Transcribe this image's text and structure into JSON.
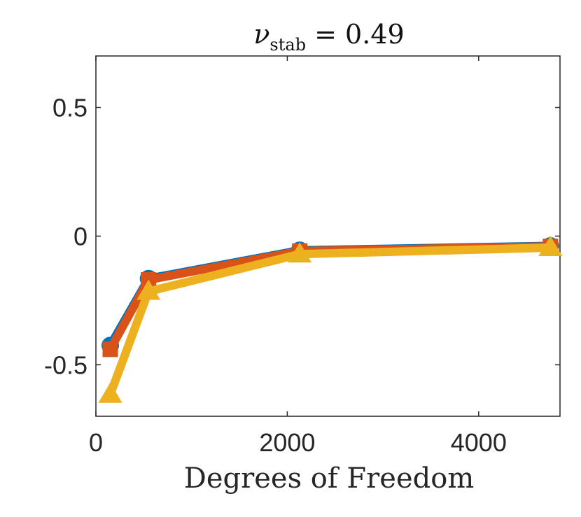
{
  "chart_data": {
    "type": "line",
    "title": "ν",
    "title_sub": "stab",
    "title_rest": " = 0.49",
    "xlabel": "Degrees of Freedom",
    "ylabel": "",
    "xlim": [
      0,
      4850
    ],
    "ylim": [
      -0.7,
      0.7
    ],
    "xticks": [
      0,
      2000,
      4000
    ],
    "xtick_labels": [
      "0",
      "2000",
      "4000"
    ],
    "yticks": [
      0.5,
      0,
      -0.5
    ],
    "ytick_labels": [
      "0.5",
      "0",
      "-0.5"
    ],
    "grid": false,
    "series": [
      {
        "color": "#0072BD",
        "marker": "circle",
        "x": [
          150,
          550,
          2130,
          4750
        ],
        "y": [
          -0.425,
          -0.165,
          -0.055,
          -0.038
        ]
      },
      {
        "color": "#D95319",
        "marker": "square",
        "x": [
          150,
          550,
          2130,
          4750
        ],
        "y": [
          -0.44,
          -0.17,
          -0.058,
          -0.04
        ]
      },
      {
        "color": "#EDB120",
        "marker": "triangle",
        "x": [
          150,
          550,
          2130,
          4750
        ],
        "y": [
          -0.615,
          -0.215,
          -0.07,
          -0.045
        ]
      }
    ]
  }
}
